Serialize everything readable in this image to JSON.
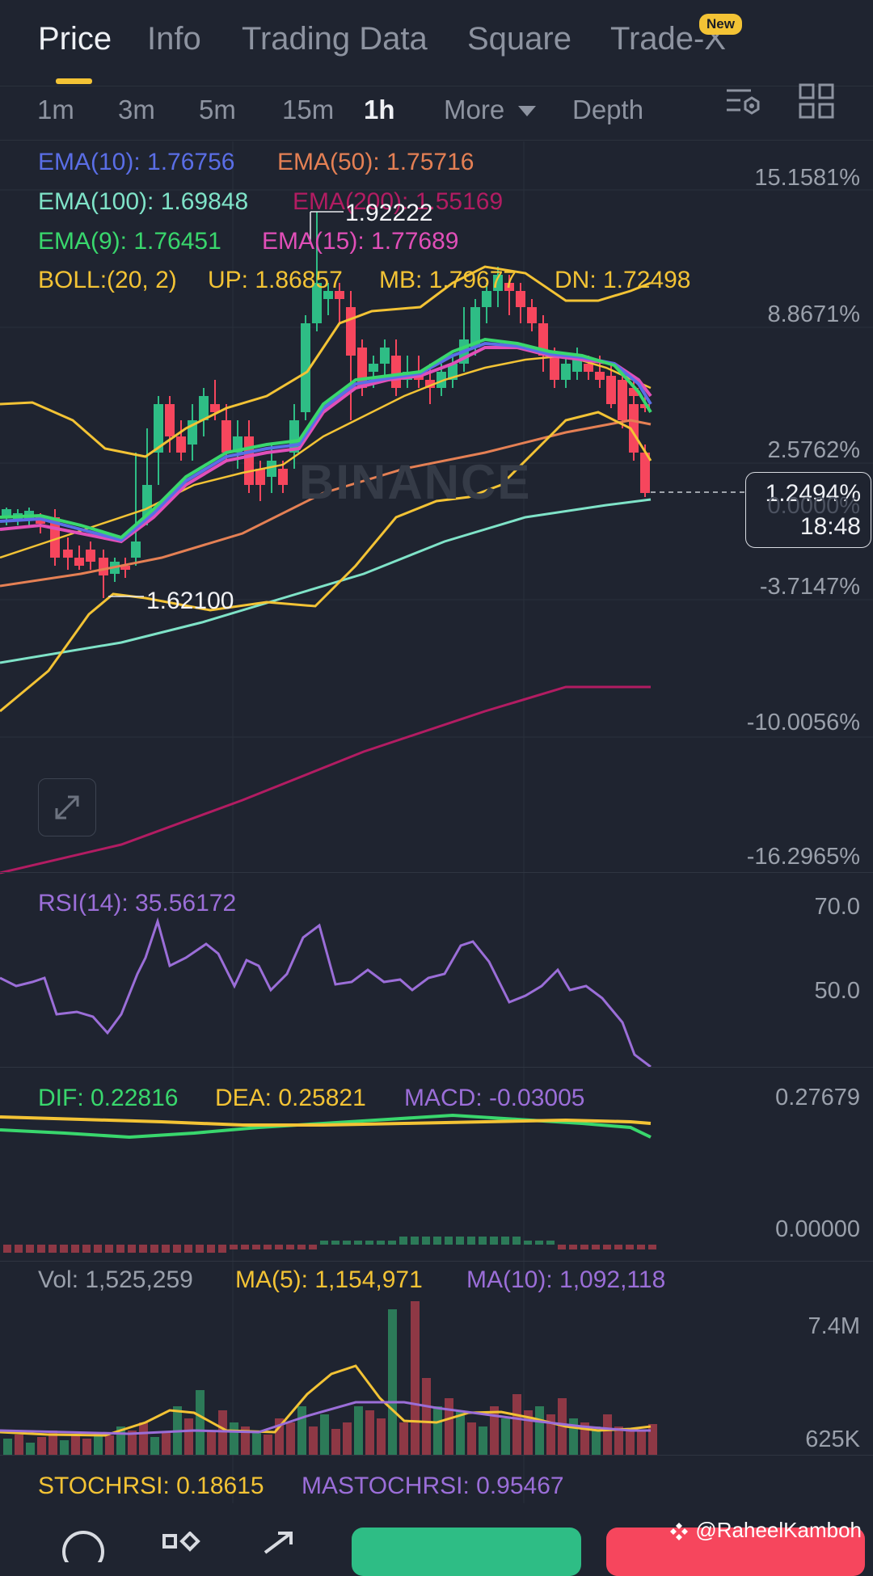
{
  "tabs": [
    {
      "label": "Price",
      "active": true
    },
    {
      "label": "Info"
    },
    {
      "label": "Trading Data"
    },
    {
      "label": "Square"
    },
    {
      "label": "Trade-X",
      "badge": "New"
    }
  ],
  "intervals": [
    "1m",
    "3m",
    "5m",
    "15m",
    "1h",
    "More",
    "Depth"
  ],
  "active_interval": "1h",
  "legend": {
    "ema10": "EMA(10): 1.76756",
    "ema50": "EMA(50): 1.75716",
    "ema100": "EMA(100): 1.69848",
    "ema200": "EMA(200): 1.55169",
    "ema9": "EMA(9): 1.76451",
    "ema15": "EMA(15): 1.77689",
    "boll": "BOLL:(20, 2)",
    "boll_up": "UP: 1.86857",
    "boll_mb": "MB: 1.79677",
    "boll_dn": "DN: 1.72498"
  },
  "annotations": {
    "high": "1.92222",
    "low": "1.62100"
  },
  "price_scale": [
    "15.1581%",
    "8.8671%",
    "2.5762%",
    "0.0000%",
    "-3.7147%",
    "-10.0056%",
    "-16.2965%"
  ],
  "current": {
    "change": "1.2494%",
    "countdown": "18:48"
  },
  "watermark": "BINANCE",
  "rsi": {
    "label": "RSI(14): 35.56172",
    "scale_top": "70.0",
    "scale_mid": "50.0"
  },
  "macd": {
    "dif": "DIF: 0.22816",
    "dea": "DEA: 0.25821",
    "macd": "MACD: -0.03005",
    "scale_top": "0.27679",
    "scale_zero": "0.00000"
  },
  "volume": {
    "vol": "Vol: 1,525,259",
    "ma5": "MA(5): 1,154,971",
    "ma10": "MA(10): 1,092,118",
    "scale_top": "7.4M",
    "scale_low": "625K"
  },
  "stochrsi": {
    "stoch": "STOCHRSI: 0.18615",
    "mastoch": "MASTOCHRSI: 0.95467"
  },
  "credit": "@RaheelKamboh",
  "colors": {
    "up": "#2ebd85",
    "down": "#f6465d",
    "accent": "#f3c335",
    "ema10": "#5a6ee6",
    "ema50": "#e58054",
    "ema100": "#7fe3c8",
    "ema200": "#b21c62",
    "ema9": "#39d76d",
    "ema15": "#e14fb8",
    "boll": "#f3c335",
    "rsi": "#9b6ed8"
  }
}
